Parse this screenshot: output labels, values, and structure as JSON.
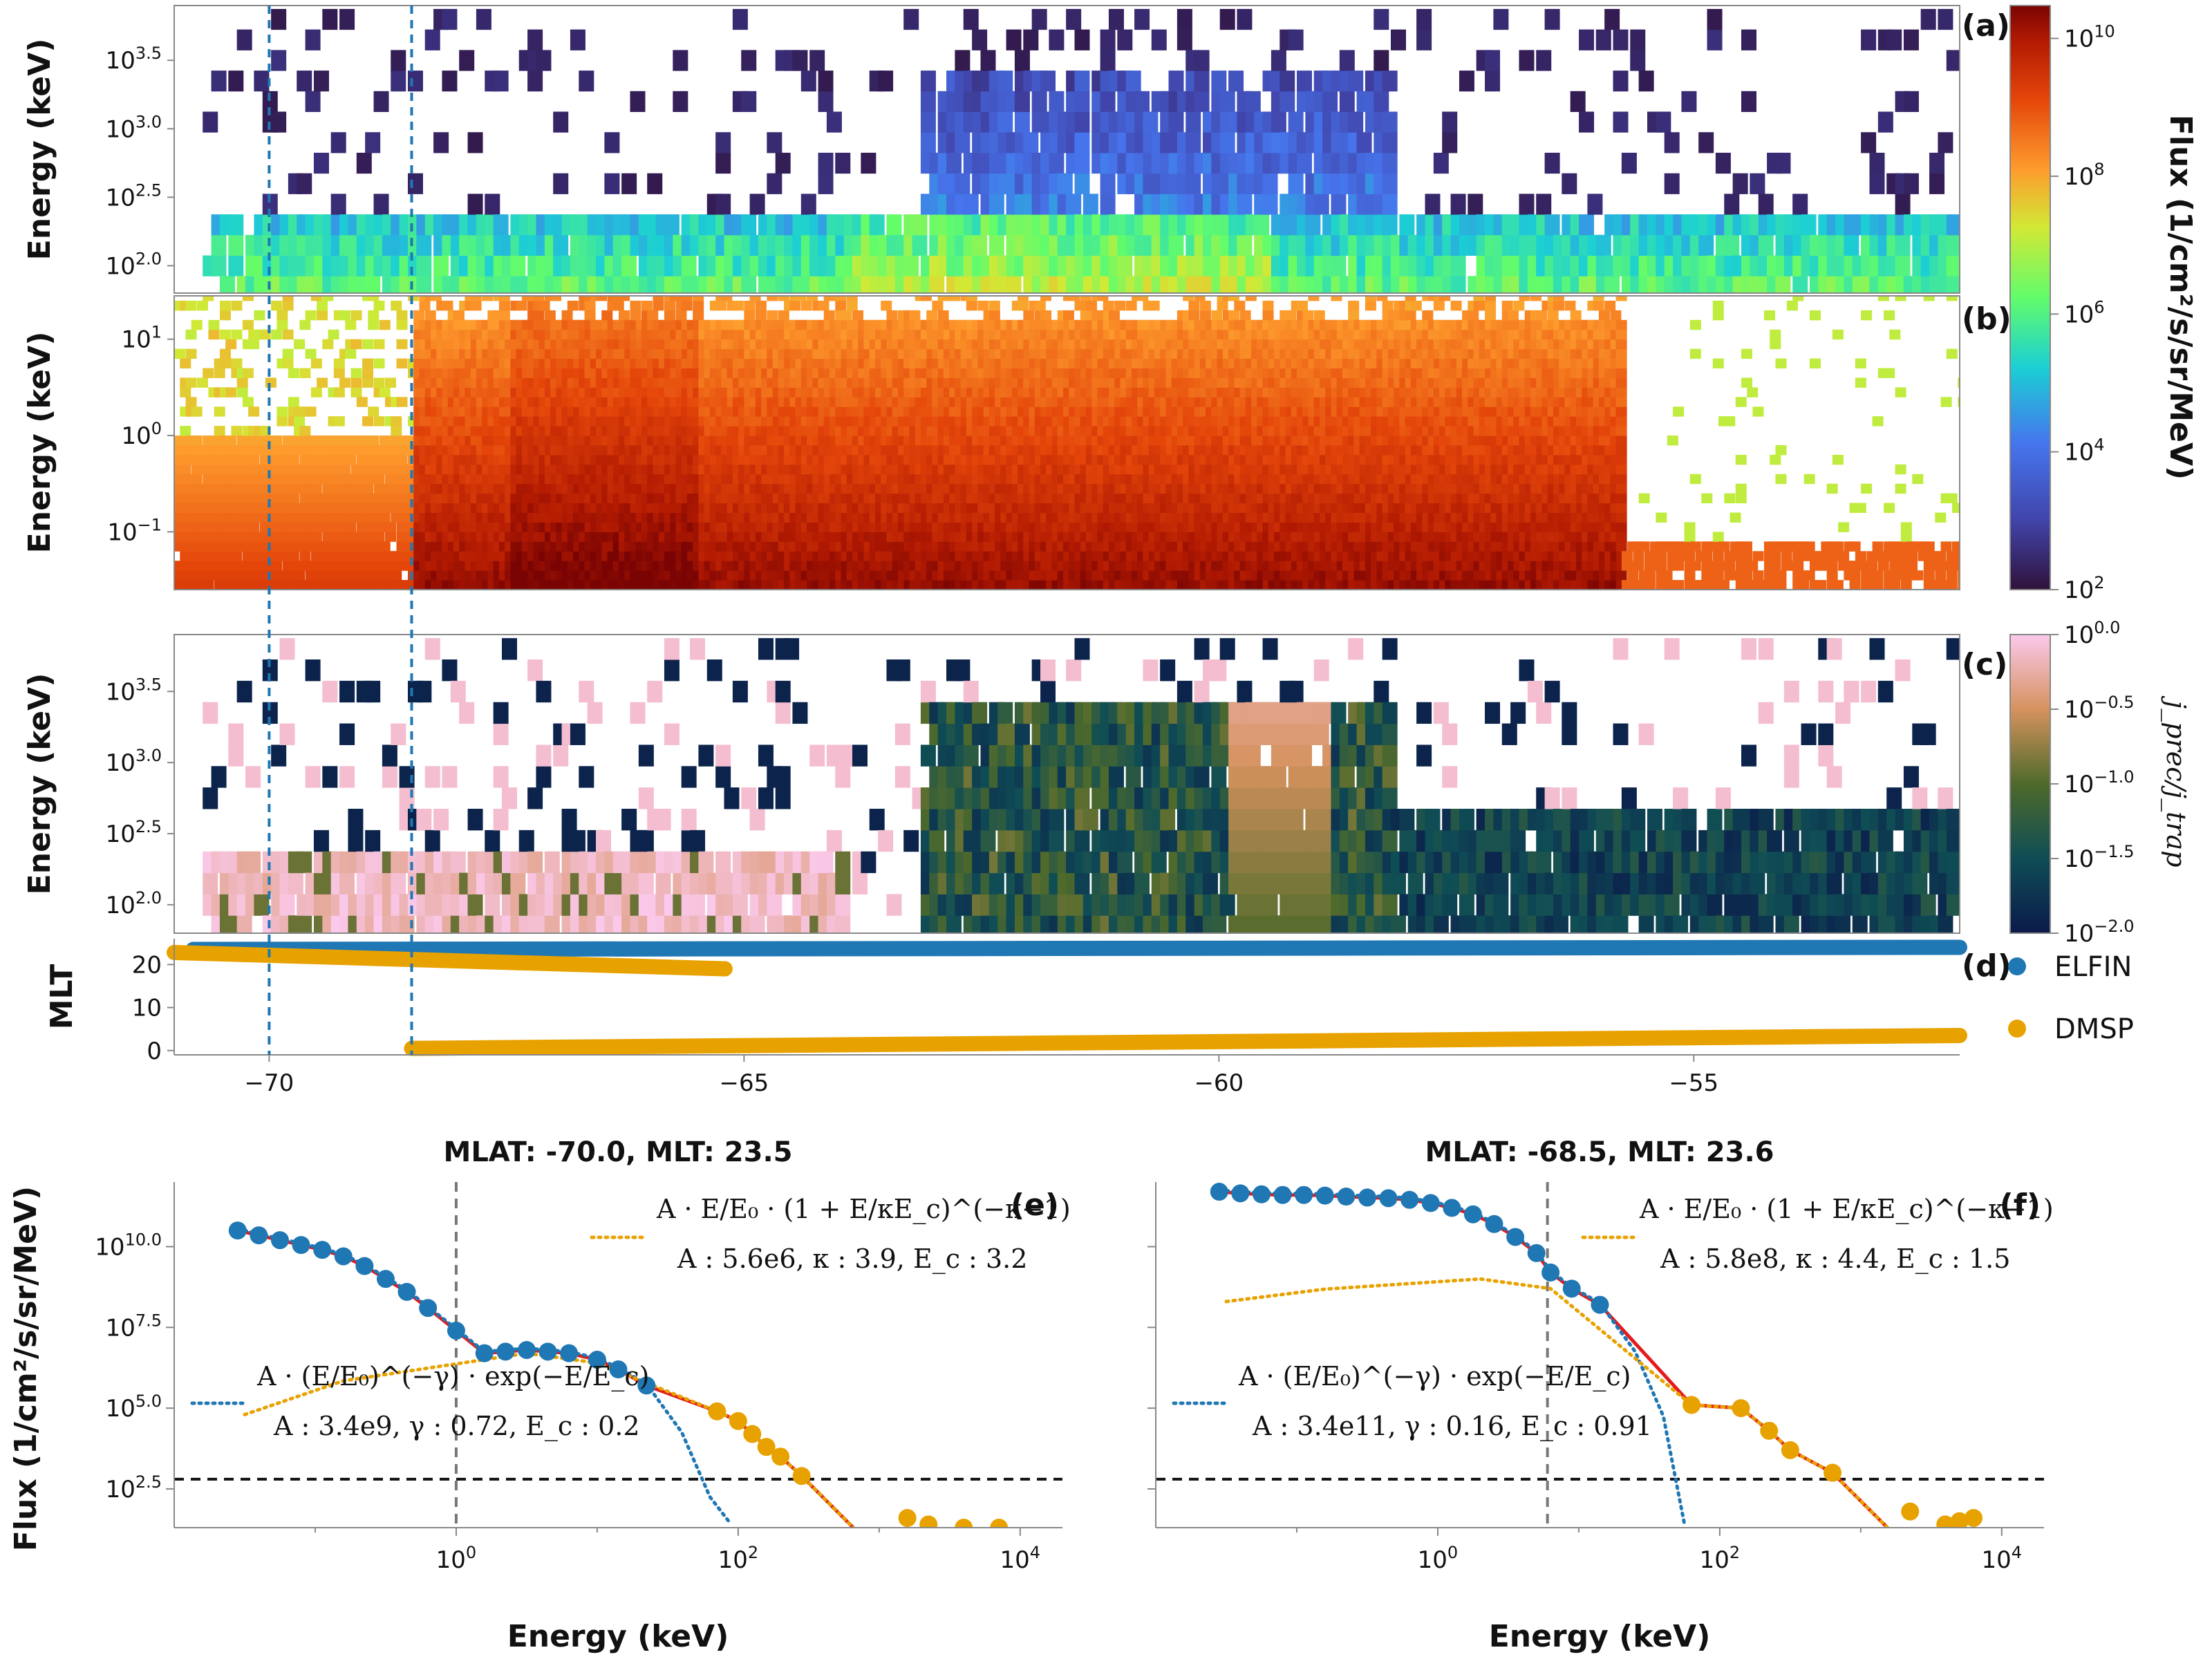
{
  "figure": {
    "colorbar_flux": {
      "label": "Flux (1/cm²/s/sr/MeV)",
      "ticks": [
        "10^2",
        "10^4",
        "10^6",
        "10^8",
        "10^10"
      ],
      "scale": "log",
      "range": [
        100,
        30000000000
      ]
    },
    "colorbar_ratio": {
      "label": "j_prec/j_trap",
      "ticks": [
        "10^−2.0",
        "10^−1.5",
        "10^−1.0",
        "10^−0.5",
        "10^0.0"
      ],
      "scale": "log",
      "range": [
        0.01,
        1
      ]
    },
    "legend": {
      "items": [
        "ELFIN",
        "DMSP"
      ],
      "colors": [
        "#1f77b4",
        "#e8a200"
      ]
    }
  },
  "chart_data": [
    {
      "panel": "(a)",
      "type": "heatmap",
      "xlabel": "",
      "ylabel": "Energy (keV)",
      "ytick_labels": [
        "10^2.0",
        "10^2.5",
        "10^3.0",
        "10^3.5"
      ],
      "yscale": "log",
      "ylim_log10": [
        1.8,
        3.9
      ],
      "xlim": [
        -71.0,
        -52.2
      ],
      "instrument": "ELFIN",
      "cell_energy_log10": [
        1.85,
        2.0,
        2.15,
        2.3,
        2.45,
        2.6,
        2.75,
        2.9,
        3.05,
        3.2,
        3.35,
        3.5,
        3.65,
        3.8
      ],
      "colorbar": "Flux (1/cm²/s/sr/MeV)",
      "vlines": [
        -70.0,
        -68.5
      ]
    },
    {
      "panel": "(b)",
      "type": "heatmap",
      "xlabel": "",
      "ylabel": "Energy (keV)",
      "ytick_labels": [
        "10^−1",
        "10^0",
        "10^1"
      ],
      "yscale": "log",
      "ylim_log10": [
        -1.6,
        1.45
      ],
      "xlim": [
        -71.0,
        -52.2
      ],
      "instrument": "DMSP",
      "colorbar": "Flux (1/cm²/s/sr/MeV)",
      "vlines": [
        -70.0,
        -68.5
      ]
    },
    {
      "panel": "(c)",
      "type": "heatmap",
      "xlabel": "",
      "ylabel": "Energy (keV)",
      "ytick_labels": [
        "10^2.0",
        "10^2.5",
        "10^3.0",
        "10^3.5"
      ],
      "yscale": "log",
      "ylim_log10": [
        1.8,
        3.9
      ],
      "xlim": [
        -71.0,
        -52.2
      ],
      "colorbar": "j_prec/j_trap",
      "vlines": [
        -70.0,
        -68.5
      ]
    },
    {
      "panel": "(d)",
      "type": "scatter",
      "xlabel": "",
      "ylabel": "MLT",
      "xticks": [
        -70,
        -65,
        -60,
        -55
      ],
      "yticks": [
        0,
        10,
        20
      ],
      "xlim": [
        -71.0,
        -52.2
      ],
      "ylim": [
        -1,
        26
      ],
      "series": [
        {
          "name": "ELFIN",
          "color": "#1f77b4",
          "segments": [
            {
              "x": [
                -70.8,
                -52.2
              ],
              "y": [
                23.5,
                24.0
              ]
            }
          ]
        },
        {
          "name": "DMSP",
          "color": "#e8a200",
          "segments": [
            {
              "x": [
                -71.0,
                -65.2
              ],
              "y": [
                22.8,
                19.0
              ]
            },
            {
              "x": [
                -68.5,
                -52.2
              ],
              "y": [
                0.5,
                3.5
              ]
            }
          ]
        }
      ],
      "vlines": [
        -70.0,
        -68.5
      ]
    },
    {
      "panel": "(e)",
      "type": "scatter",
      "title": "MLAT: -70.0, MLT: 23.5",
      "xlabel": "Energy (keV)",
      "ylabel": "Flux (1/cm²/s/sr/MeV)",
      "xscale": "log",
      "yscale": "log",
      "xtick_labels": [
        "10^0",
        "10^2",
        "10^4"
      ],
      "ytick_labels": [
        "10^2.5",
        "10^5.0",
        "10^7.5",
        "10^10.0"
      ],
      "xlim_log10": [
        -2.0,
        4.3
      ],
      "ylim_log10": [
        1.3,
        12.0
      ],
      "threshold_log10": 2.8,
      "vline_energy_keV": 1.0,
      "dmsp_points": {
        "logE": [
          -1.55,
          -1.4,
          -1.25,
          -1.1,
          -0.95,
          -0.8,
          -0.65,
          -0.5,
          -0.35,
          -0.2,
          0.0,
          0.2,
          0.35,
          0.5,
          0.65,
          0.8,
          1.0,
          1.15,
          1.35
        ],
        "logF": [
          10.5,
          10.35,
          10.2,
          10.05,
          9.9,
          9.7,
          9.4,
          9.0,
          8.6,
          8.1,
          7.4,
          6.7,
          6.75,
          6.8,
          6.75,
          6.7,
          6.5,
          6.2,
          5.7
        ]
      },
      "elfin_points": {
        "logE": [
          1.85,
          2.0,
          2.1,
          2.2,
          2.3,
          2.45,
          3.2,
          3.35,
          3.6,
          3.85
        ],
        "logF": [
          4.9,
          4.6,
          4.2,
          3.8,
          3.5,
          2.9,
          1.6,
          1.4,
          1.3,
          1.3
        ]
      },
      "fit_labels": {
        "kappa_formula": "A · E/E₀ · (1 + E/κE_c)^(−κ−1)",
        "kappa_params": "A : 5.6e6, κ : 3.9, E_c : 3.2",
        "exp_formula": "A · (E/E₀)^(−γ) · exp(−E/E_c)",
        "exp_params": "A : 3.4e9, γ : 0.72, E_c : 0.2"
      }
    },
    {
      "panel": "(f)",
      "type": "scatter",
      "title": "MLAT: -68.5, MLT: 23.6",
      "xlabel": "Energy (keV)",
      "ylabel": "",
      "xscale": "log",
      "yscale": "log",
      "xtick_labels": [
        "10^0",
        "10^2",
        "10^4"
      ],
      "xlim_log10": [
        -2.0,
        4.3
      ],
      "ylim_log10": [
        1.3,
        12.0
      ],
      "threshold_log10": 2.8,
      "vline_energy_keV": 6.0,
      "dmsp_points": {
        "logE": [
          -1.55,
          -1.4,
          -1.25,
          -1.1,
          -0.95,
          -0.8,
          -0.65,
          -0.5,
          -0.35,
          -0.2,
          -0.05,
          0.1,
          0.25,
          0.4,
          0.55,
          0.7,
          0.8,
          0.95,
          1.15
        ],
        "logF": [
          11.7,
          11.65,
          11.62,
          11.6,
          11.6,
          11.58,
          11.55,
          11.52,
          11.5,
          11.45,
          11.35,
          11.2,
          11.0,
          10.7,
          10.3,
          9.8,
          9.2,
          8.7,
          8.2
        ]
      },
      "elfin_points": {
        "logE": [
          1.8,
          2.15,
          2.35,
          2.5,
          2.8,
          3.35,
          3.6,
          3.7,
          3.8
        ],
        "logF": [
          5.1,
          5.0,
          4.3,
          3.7,
          3.0,
          1.8,
          1.4,
          1.5,
          1.6
        ]
      },
      "fit_labels": {
        "kappa_formula": "A · E/E₀ · (1 + E/κE_c)^(−κ−1)",
        "kappa_params": "A : 5.8e8, κ : 4.4, E_c : 1.5",
        "exp_formula": "A · (E/E₀)^(−γ) · exp(−E/E_c)",
        "exp_params": "A : 3.4e11, γ : 0.16, E_c : 0.91"
      }
    }
  ]
}
